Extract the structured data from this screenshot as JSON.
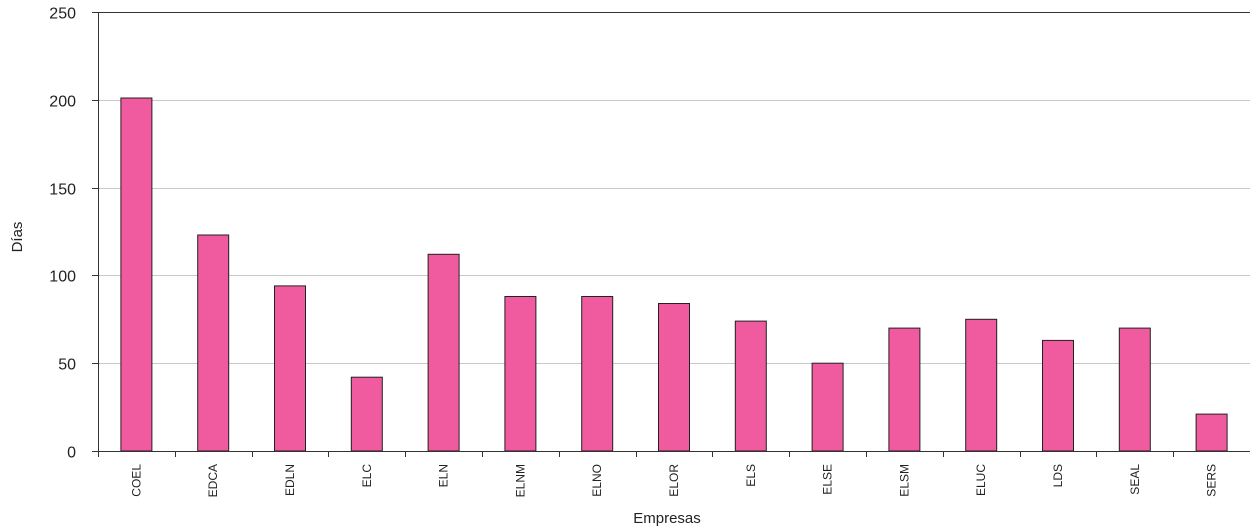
{
  "chart_data": {
    "type": "bar",
    "title": "",
    "xlabel": "Empresas",
    "ylabel": "Días",
    "ylim": [
      0,
      250
    ],
    "yticks": [
      0,
      50,
      100,
      150,
      200,
      250
    ],
    "grid": true,
    "categories": [
      "COEL",
      "EDCA",
      "EDLN",
      "ELC",
      "ELN",
      "ELNM",
      "ELNO",
      "ELOR",
      "ELS",
      "ELSE",
      "ELSM",
      "ELUC",
      "LDS",
      "SEAL",
      "SERS"
    ],
    "values": [
      201,
      123,
      94,
      42,
      112,
      88,
      88,
      84,
      74,
      50,
      70,
      75,
      63,
      70,
      21
    ],
    "bar_color": "#f05a9f",
    "bar_edge_color": "#222222",
    "grid_color": "#c8c8c8"
  }
}
